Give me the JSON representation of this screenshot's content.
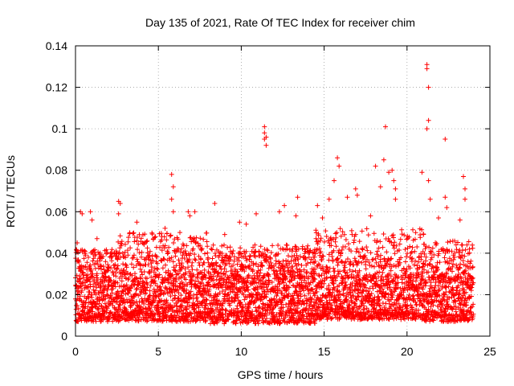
{
  "chart_data": {
    "type": "scatter",
    "title": "Day 135 of 2021, Rate Of TEC Index for receiver chim",
    "xlabel": "GPS time / hours",
    "ylabel": "ROTI / TECUs",
    "xlim": [
      0,
      25
    ],
    "ylim": [
      0,
      0.14
    ],
    "xticks": [
      0,
      5,
      10,
      15,
      20,
      25
    ],
    "yticks": [
      0,
      0.02,
      0.04,
      0.06,
      0.08,
      0.1,
      0.12,
      0.14
    ],
    "xtick_labels": [
      "0",
      "5",
      "10",
      "15",
      "20",
      "25"
    ],
    "ytick_labels": [
      "0",
      "0.02",
      "0.04",
      "0.06",
      "0.08",
      "0.1",
      "0.12",
      "0.14"
    ],
    "grid": true,
    "marker": "plus",
    "color": "#ff0000",
    "series": [
      {
        "name": "ROTI",
        "points": [
          [
            0.1,
            0.045
          ],
          [
            0.3,
            0.06
          ],
          [
            0.4,
            0.059
          ],
          [
            0.9,
            0.06
          ],
          [
            1.0,
            0.056
          ],
          [
            1.3,
            0.047
          ],
          [
            2.6,
            0.065
          ],
          [
            2.7,
            0.064
          ],
          [
            2.6,
            0.059
          ],
          [
            3.7,
            0.055
          ],
          [
            5.4,
            0.052
          ],
          [
            5.8,
            0.078
          ],
          [
            5.9,
            0.072
          ],
          [
            5.8,
            0.066
          ],
          [
            5.9,
            0.06
          ],
          [
            6.3,
            0.05
          ],
          [
            6.8,
            0.06
          ],
          [
            6.9,
            0.058
          ],
          [
            7.2,
            0.06
          ],
          [
            8.4,
            0.064
          ],
          [
            9.0,
            0.049
          ],
          [
            9.9,
            0.055
          ],
          [
            10.3,
            0.054
          ],
          [
            10.9,
            0.059
          ],
          [
            11.4,
            0.101
          ],
          [
            11.4,
            0.098
          ],
          [
            11.4,
            0.095
          ],
          [
            11.5,
            0.092
          ],
          [
            11.5,
            0.096
          ],
          [
            12.3,
            0.06
          ],
          [
            12.6,
            0.063
          ],
          [
            13.4,
            0.067
          ],
          [
            13.3,
            0.058
          ],
          [
            14.6,
            0.063
          ],
          [
            14.9,
            0.057
          ],
          [
            15.3,
            0.066
          ],
          [
            15.6,
            0.075
          ],
          [
            15.8,
            0.086
          ],
          [
            15.9,
            0.082
          ],
          [
            16.4,
            0.067
          ],
          [
            16.9,
            0.071
          ],
          [
            17.0,
            0.068
          ],
          [
            17.8,
            0.058
          ],
          [
            18.1,
            0.082
          ],
          [
            18.4,
            0.072
          ],
          [
            18.6,
            0.085
          ],
          [
            18.7,
            0.101
          ],
          [
            18.9,
            0.079
          ],
          [
            19.1,
            0.08
          ],
          [
            19.2,
            0.075
          ],
          [
            19.3,
            0.071
          ],
          [
            19.3,
            0.066
          ],
          [
            20.9,
            0.079
          ],
          [
            21.2,
            0.131
          ],
          [
            21.2,
            0.129
          ],
          [
            21.3,
            0.12
          ],
          [
            21.3,
            0.104
          ],
          [
            21.2,
            0.1
          ],
          [
            21.3,
            0.075
          ],
          [
            21.4,
            0.066
          ],
          [
            21.9,
            0.057
          ],
          [
            22.3,
            0.095
          ],
          [
            22.3,
            0.067
          ],
          [
            22.4,
            0.062
          ],
          [
            23.4,
            0.077
          ],
          [
            23.5,
            0.071
          ],
          [
            23.5,
            0.066
          ],
          [
            23.2,
            0.056
          ]
        ],
        "dense_band": {
          "segments": [
            {
              "x_start": 0.0,
              "x_end": 2.5,
              "y_low": 0.007,
              "y_high": 0.042
            },
            {
              "x_start": 2.5,
              "x_end": 8.0,
              "y_low": 0.007,
              "y_high": 0.05
            },
            {
              "x_start": 8.0,
              "x_end": 14.5,
              "y_low": 0.006,
              "y_high": 0.044
            },
            {
              "x_start": 14.5,
              "x_end": 21.0,
              "y_low": 0.008,
              "y_high": 0.052
            },
            {
              "x_start": 21.0,
              "x_end": 24.0,
              "y_low": 0.007,
              "y_high": 0.046
            }
          ],
          "core_low": 0.012,
          "core_high": 0.028,
          "step_hours": 0.0125
        }
      }
    ]
  }
}
